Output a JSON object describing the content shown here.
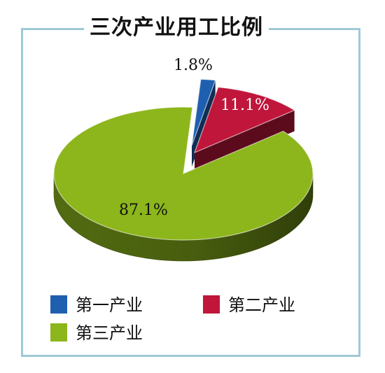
{
  "chart_data": {
    "type": "pie",
    "title": "三次产业用工比例",
    "unit": "%",
    "slices": [
      {
        "name": "第一产业",
        "value": 1.8,
        "label": "1.8%",
        "color": "#1f5fb0"
      },
      {
        "name": "第二产业",
        "value": 11.1,
        "label": "11.1%",
        "color": "#c0163b"
      },
      {
        "name": "第三产业",
        "value": 87.1,
        "label": "87.1%",
        "color": "#8cb61b"
      }
    ],
    "legend": "bottom",
    "style": "3d-exploded"
  }
}
